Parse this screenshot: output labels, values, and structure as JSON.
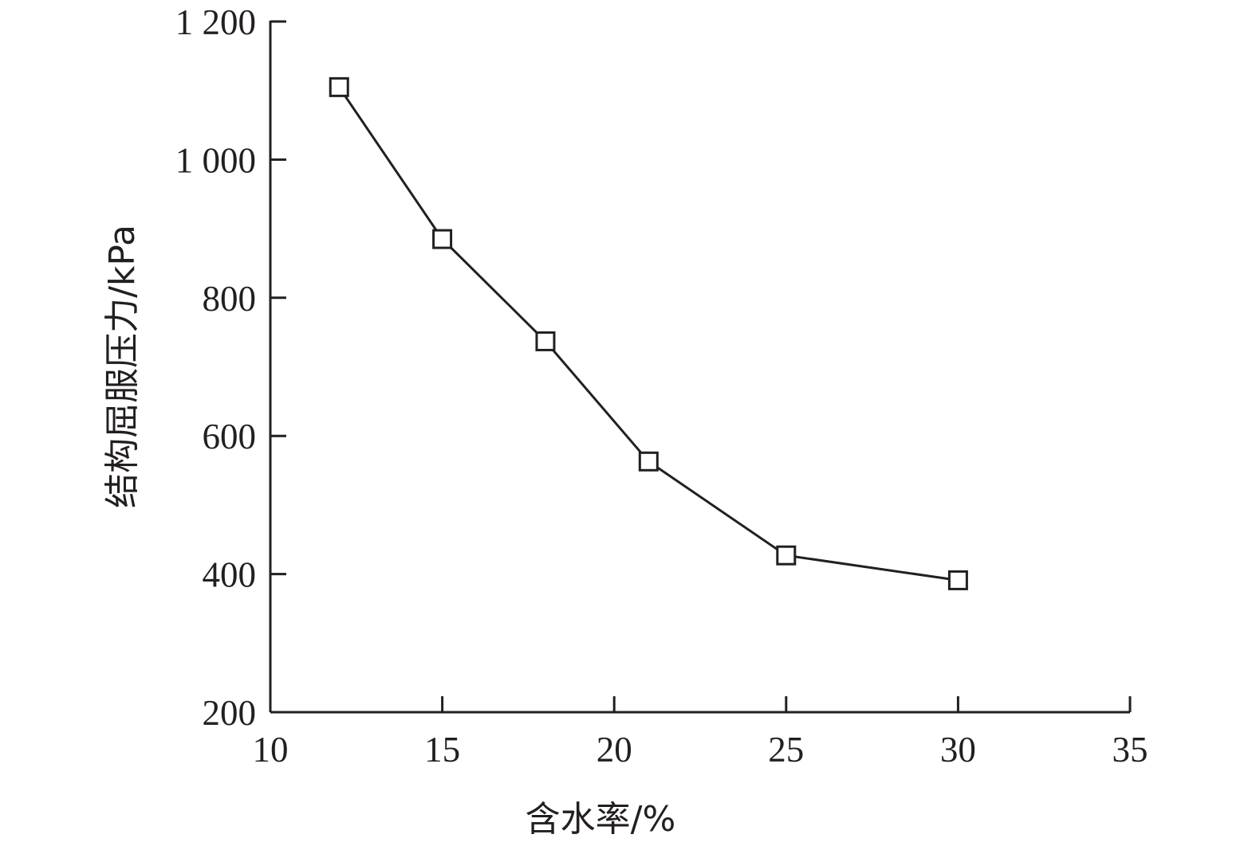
{
  "chart_data": {
    "type": "line",
    "xlabel": "含水率/%",
    "ylabel": "结构屈服压力/kPa",
    "xlim": [
      10,
      35
    ],
    "ylim": [
      200,
      1200
    ],
    "x_ticks": [
      10,
      15,
      20,
      25,
      30,
      35
    ],
    "x_tick_labels": [
      "10",
      "15",
      "20",
      "25",
      "30",
      "35"
    ],
    "y_ticks": [
      200,
      400,
      600,
      800,
      1000,
      1200
    ],
    "y_tick_labels": [
      "200",
      "400",
      "600",
      "800",
      "1 000",
      "1 200"
    ],
    "grid": false,
    "legend": false,
    "series": [
      {
        "marker": "square-open",
        "color": "#231f20",
        "x": [
          12,
          15,
          18,
          21,
          25,
          30
        ],
        "y": [
          1105,
          885,
          737,
          563,
          427,
          391
        ]
      }
    ]
  }
}
